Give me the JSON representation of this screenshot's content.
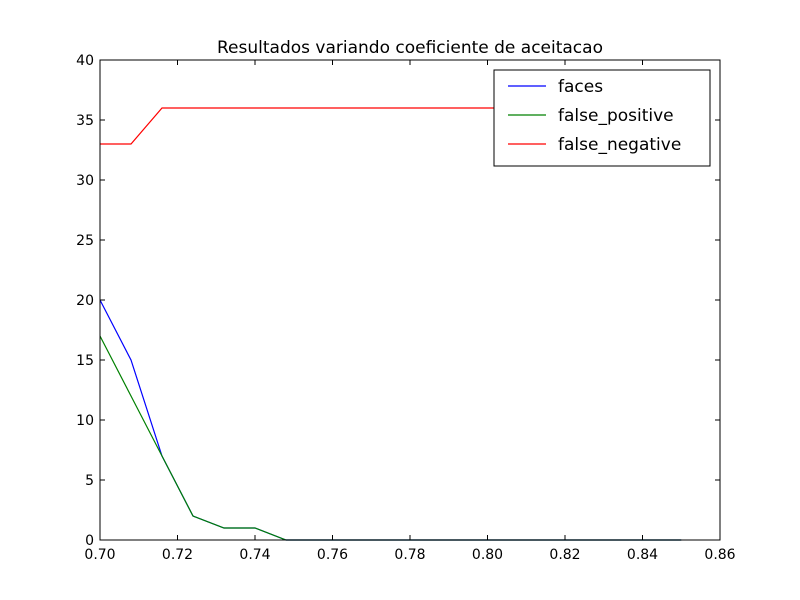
{
  "chart_data": {
    "type": "line",
    "title": "Resultados variando coeficiente de aceitacao",
    "xlabel": "",
    "ylabel": "",
    "xlim": [
      0.7,
      0.86
    ],
    "ylim": [
      0,
      40
    ],
    "x_ticks": [
      0.7,
      0.72,
      0.74,
      0.76,
      0.78,
      0.8,
      0.82,
      0.84,
      0.86
    ],
    "x_tick_labels": [
      "0.70",
      "0.72",
      "0.74",
      "0.76",
      "0.78",
      "0.80",
      "0.82",
      "0.84",
      "0.86"
    ],
    "y_ticks": [
      0,
      5,
      10,
      15,
      20,
      25,
      30,
      35,
      40
    ],
    "y_tick_labels": [
      "0",
      "5",
      "10",
      "15",
      "20",
      "25",
      "30",
      "35",
      "40"
    ],
    "grid": false,
    "legend_position": "top-right",
    "x": [
      0.7,
      0.708,
      0.716,
      0.724,
      0.732,
      0.74,
      0.748,
      0.756,
      0.764,
      0.772,
      0.78,
      0.788,
      0.796,
      0.804,
      0.812,
      0.82,
      0.828,
      0.836,
      0.844,
      0.85
    ],
    "series": [
      {
        "name": "faces",
        "color": "#0000ff",
        "values": [
          20,
          15,
          7,
          2,
          1,
          1,
          0,
          0,
          0,
          0,
          0,
          0,
          0,
          0,
          0,
          0,
          0,
          0,
          0,
          0
        ]
      },
      {
        "name": "false_positive",
        "color": "#008000",
        "values": [
          17,
          12,
          7,
          2,
          1,
          1,
          0,
          0,
          0,
          0,
          0,
          0,
          0,
          0,
          0,
          0,
          0,
          0,
          0,
          0
        ]
      },
      {
        "name": "false_negative",
        "color": "#ff0000",
        "values": [
          33,
          33,
          36,
          36,
          36,
          36,
          36,
          36,
          36,
          36,
          36,
          36,
          36,
          36,
          36,
          36,
          36,
          36,
          36,
          36
        ]
      }
    ]
  }
}
